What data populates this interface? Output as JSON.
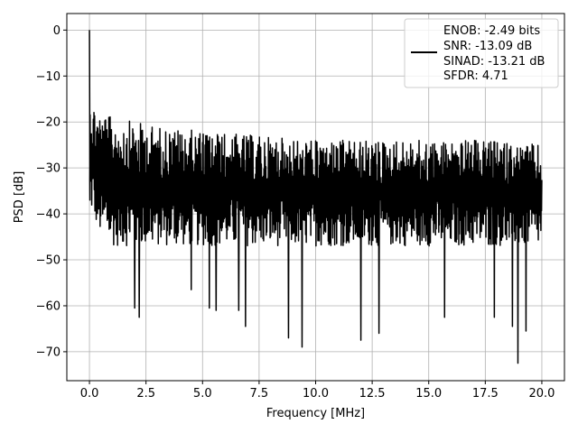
{
  "chart_data": {
    "type": "line",
    "xlabel": "Frequency [MHz]",
    "ylabel": "PSD [dB]",
    "xlim": [
      -1.0,
      21.0
    ],
    "ylim": [
      -76.3,
      3.6
    ],
    "xticks": [
      0.0,
      2.5,
      5.0,
      7.5,
      10.0,
      12.5,
      15.0,
      17.5,
      20.0
    ],
    "xtick_labels": [
      "0.0",
      "2.5",
      "5.0",
      "7.5",
      "10.0",
      "12.5",
      "15.0",
      "17.5",
      "20.0"
    ],
    "yticks": [
      0,
      -10,
      -20,
      -30,
      -40,
      -50,
      -60,
      -70
    ],
    "ytick_labels": [
      "0",
      "−10",
      "−20",
      "−30",
      "−40",
      "−50",
      "−60",
      "−70"
    ],
    "grid": true,
    "legend_position": "top-right",
    "line_color": "#000000",
    "legend": [
      "ENOB: -2.49 bits",
      "SNR: -13.09 dB",
      "SINAD: -13.21 dB",
      "SFDR: 4.71"
    ],
    "series": [
      {
        "x_start": 0.0,
        "x_end": 20.0,
        "peak": {
          "x": 0.0,
          "y": 0.0
        },
        "upper_envelope": {
          "x": [
            0.1,
            0.5,
            1.0,
            2.0,
            3.0,
            5.0,
            7.5,
            10.0,
            12.5,
            15.0,
            17.5,
            20.0
          ],
          "y": [
            -15,
            -18,
            -19,
            -20,
            -21,
            -22,
            -23,
            -24,
            -24,
            -24,
            -24,
            -25
          ]
        },
        "lower_envelope": {
          "x": [
            0.1,
            0.5,
            1.0,
            2.0,
            3.0,
            5.0,
            7.5,
            10.0,
            12.5,
            15.0,
            17.5,
            20.0
          ],
          "y": [
            -40,
            -45,
            -47,
            -47,
            -47,
            -47,
            -47,
            -47,
            -47,
            -47,
            -47,
            -47
          ]
        },
        "dips": [
          {
            "x": 2.0,
            "y": -60.5
          },
          {
            "x": 2.2,
            "y": -62.5
          },
          {
            "x": 4.5,
            "y": -56.5
          },
          {
            "x": 5.3,
            "y": -60.5
          },
          {
            "x": 5.6,
            "y": -61
          },
          {
            "x": 6.6,
            "y": -61
          },
          {
            "x": 6.9,
            "y": -64.5
          },
          {
            "x": 8.8,
            "y": -67
          },
          {
            "x": 9.4,
            "y": -69
          },
          {
            "x": 12.0,
            "y": -67.5
          },
          {
            "x": 12.8,
            "y": -66
          },
          {
            "x": 15.7,
            "y": -62.5
          },
          {
            "x": 17.9,
            "y": -62.5
          },
          {
            "x": 18.7,
            "y": -64.5
          },
          {
            "x": 18.95,
            "y": -72.5
          },
          {
            "x": 19.3,
            "y": -65.5
          }
        ]
      }
    ]
  }
}
